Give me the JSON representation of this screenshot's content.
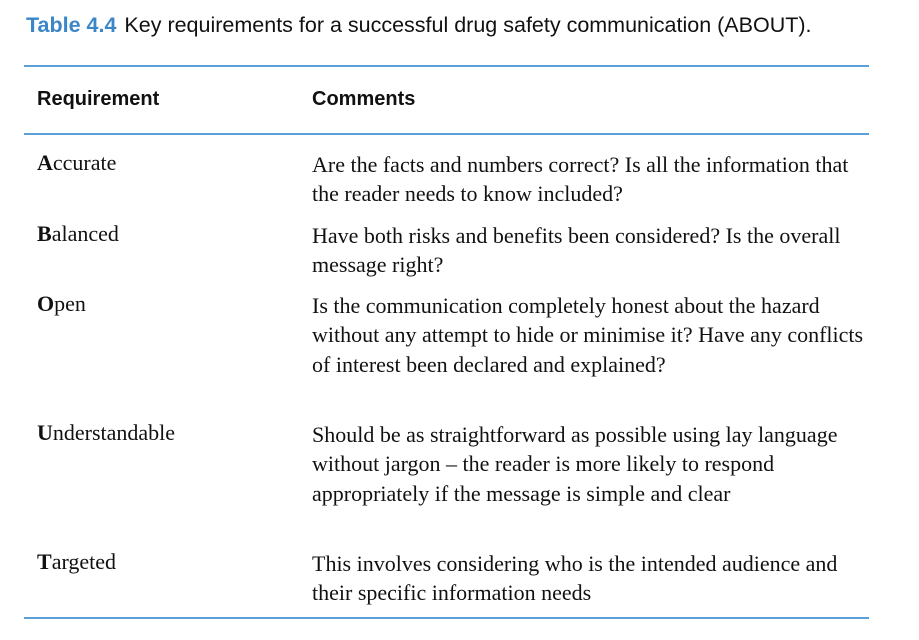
{
  "caption": {
    "label": "Table 4.4",
    "text": "Key requirements for a successful drug safety communication (ABOUT)."
  },
  "table": {
    "headers": [
      "Requirement",
      "Comments"
    ],
    "rows": [
      {
        "initial": "A",
        "rest": "ccurate",
        "comment": "Are the facts and numbers correct? Is all the information that the reader needs to know included?"
      },
      {
        "initial": "B",
        "rest": "alanced",
        "comment": "Have both risks and benefits been considered? Is the overall message right?"
      },
      {
        "initial": "O",
        "rest": "pen",
        "comment": "Is the communication completely honest about the hazard without any attempt to hide or minimise it? Have any conflicts of interest been declared and explained?"
      },
      {
        "initial": "U",
        "rest": "nderstandable",
        "comment": "Should be as straightforward as possible using lay language without jargon – the reader is more likely to respond appropriately if the message is simple and clear"
      },
      {
        "initial": "T",
        "rest": "argeted",
        "comment": "This involves considering who is the intended audience and their specific information needs"
      }
    ]
  },
  "colors": {
    "label": "#3a86c8",
    "rule": "#5b9fd6",
    "text": "#111111"
  }
}
